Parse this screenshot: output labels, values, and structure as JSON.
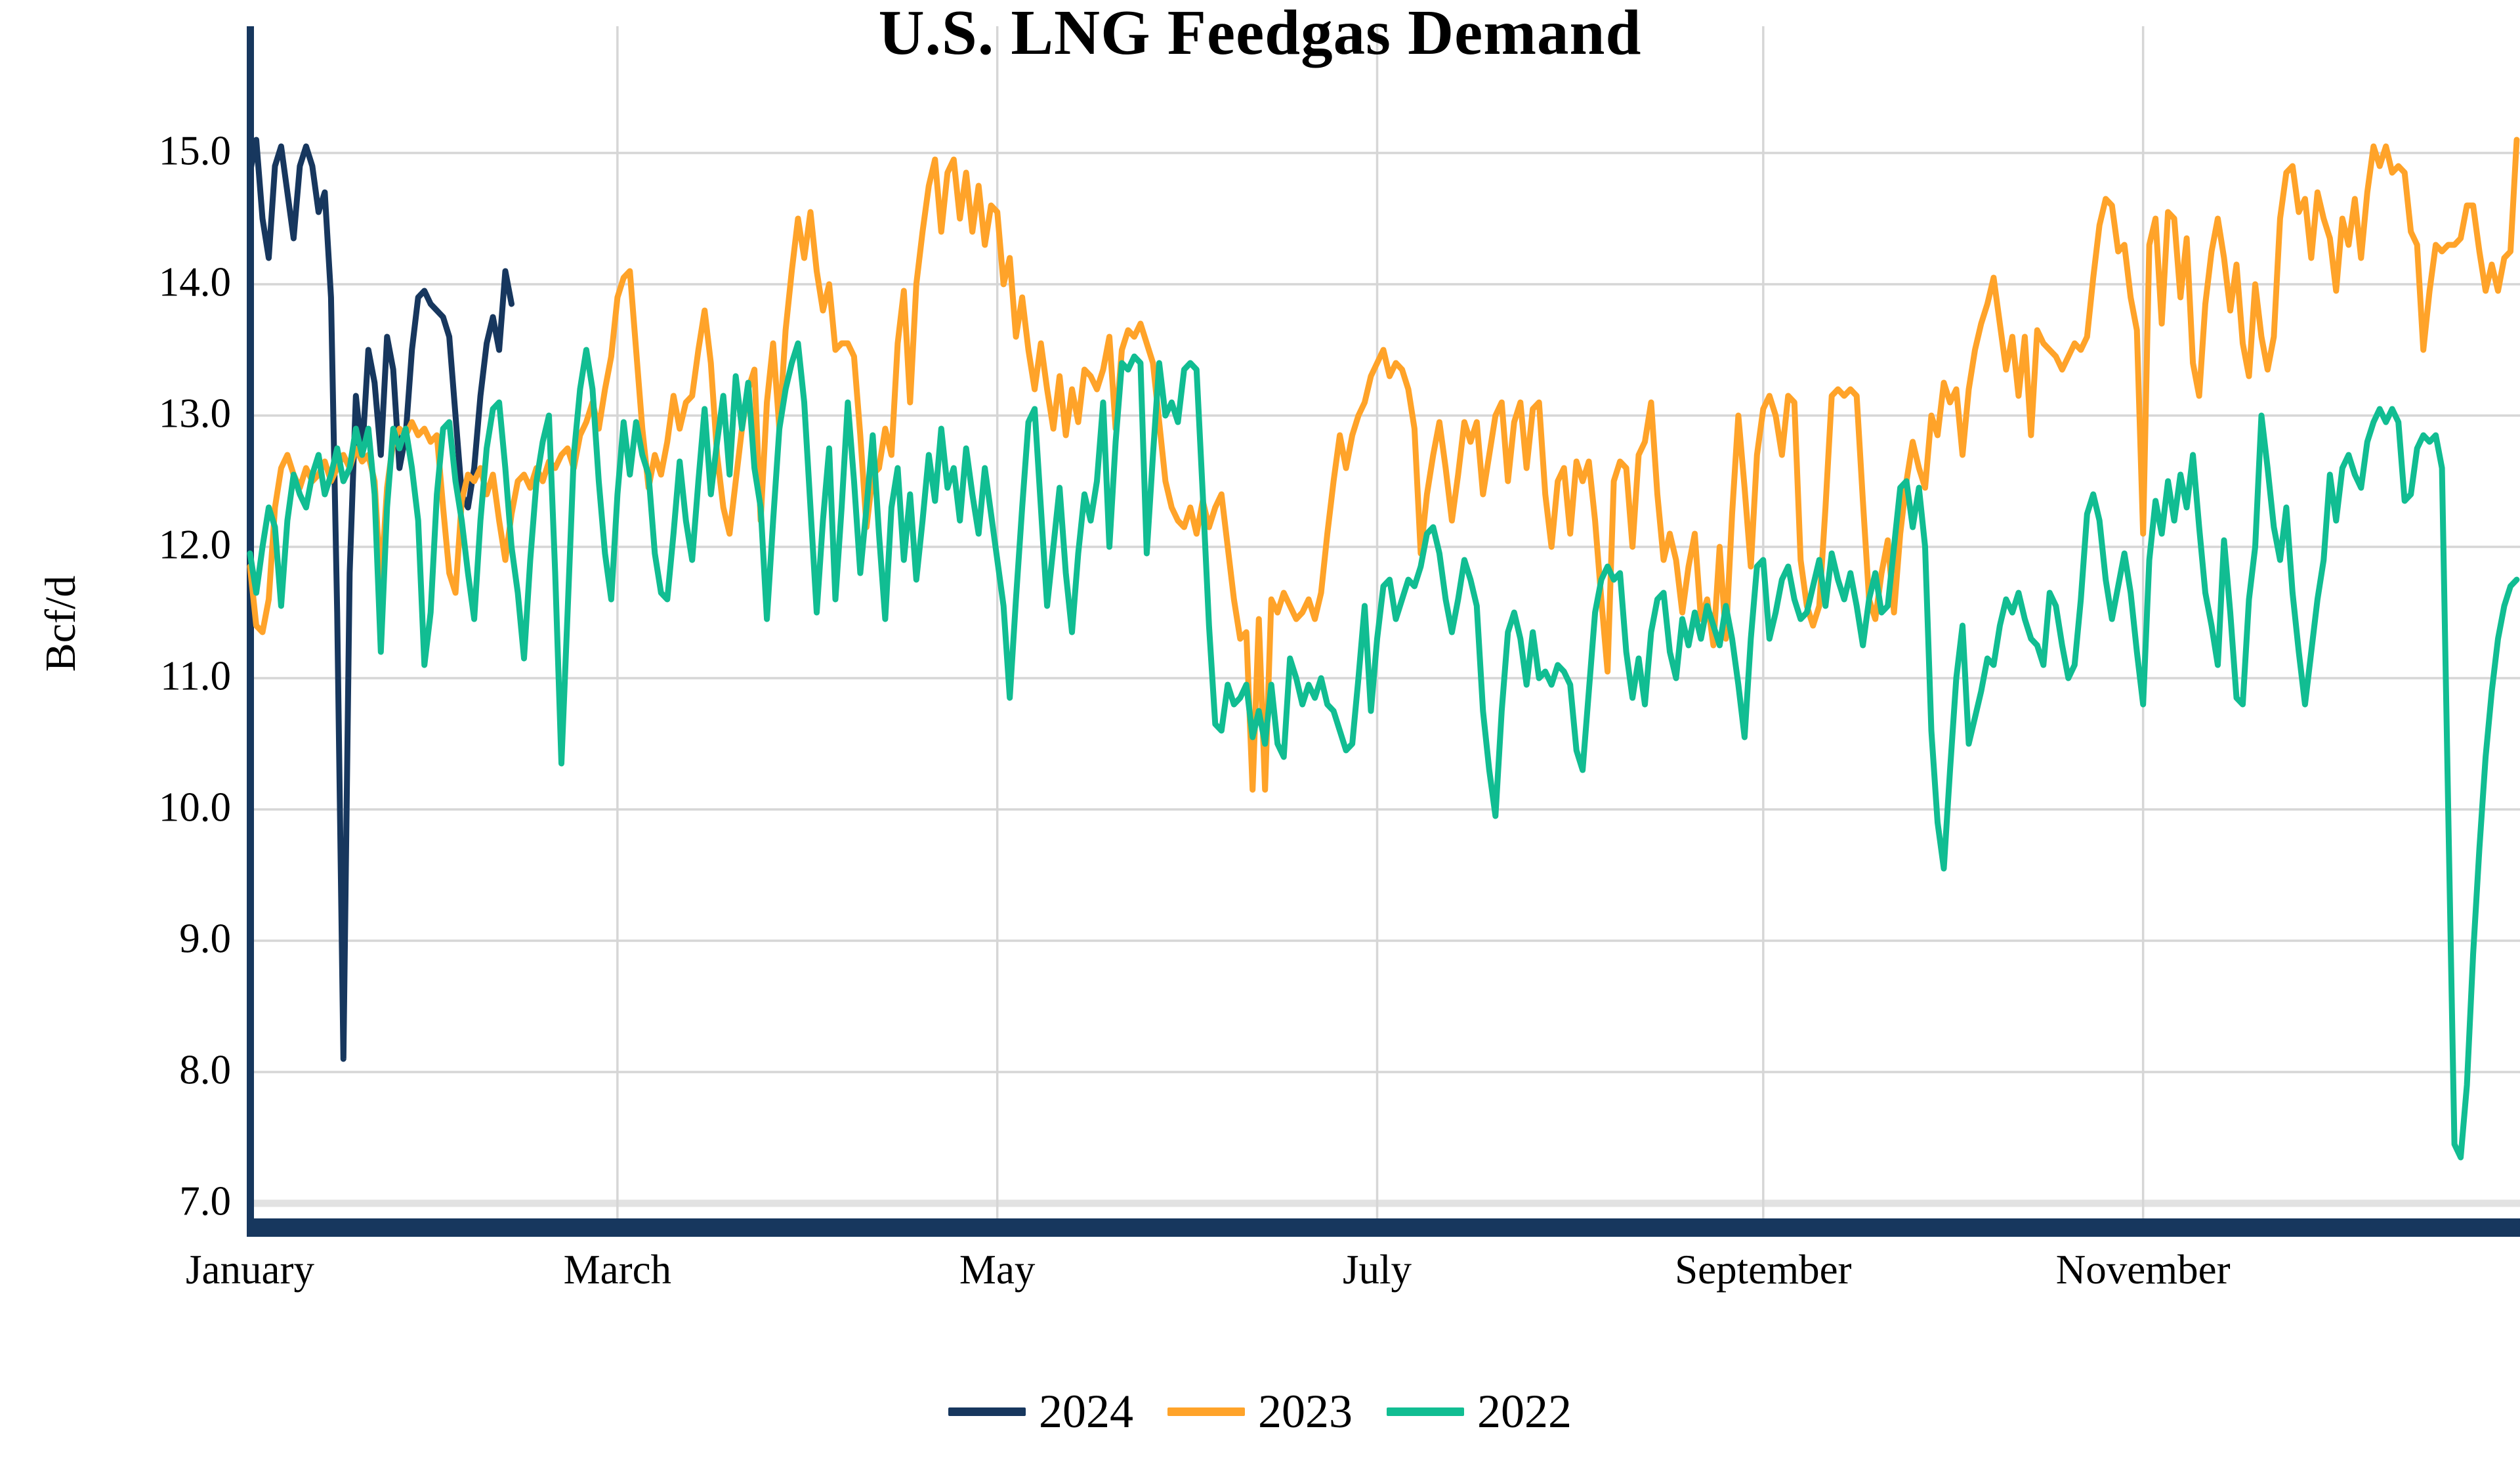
{
  "title": "U.S. LNG Feedgas Demand",
  "chart_data": {
    "type": "line",
    "title": "U.S. LNG Feedgas Demand",
    "xlabel": "",
    "ylabel": "Bcf/d",
    "ylim": [
      7.0,
      15.5
    ],
    "grid": true,
    "legend_position": "bottom",
    "x_unit": "day_of_year",
    "x_range": [
      1,
      365
    ],
    "yticks": [
      {
        "value": 7,
        "label": "7.0"
      },
      {
        "value": 8,
        "label": "8.0"
      },
      {
        "value": 9,
        "label": "9.0"
      },
      {
        "value": 10,
        "label": "10.0"
      },
      {
        "value": 11,
        "label": "11.0"
      },
      {
        "value": 12,
        "label": "12.0"
      },
      {
        "value": 13,
        "label": "13.0"
      },
      {
        "value": 14,
        "label": "14.0"
      },
      {
        "value": 15,
        "label": "15.0"
      }
    ],
    "xticks": [
      {
        "day": 1,
        "label": "January",
        "gridline": false
      },
      {
        "day": 60,
        "label": "March",
        "gridline": true
      },
      {
        "day": 121,
        "label": "May",
        "gridline": true
      },
      {
        "day": 182,
        "label": "July",
        "gridline": true
      },
      {
        "day": 244,
        "label": "September",
        "gridline": true
      },
      {
        "day": 305,
        "label": "November",
        "gridline": true
      }
    ],
    "colors": {
      "axis_spine": "#17375e",
      "gridline": "#d6d6d6",
      "baseline_gridline": "#e2e2e2",
      "background": "#ffffff"
    },
    "series": [
      {
        "name": "2024",
        "color": "#17375e",
        "start_day": 1,
        "values": [
          14.85,
          15.1,
          14.5,
          14.2,
          14.9,
          15.05,
          14.7,
          14.35,
          14.9,
          15.05,
          14.9,
          14.55,
          14.7,
          13.9,
          11.5,
          8.1,
          11.8,
          13.15,
          12.7,
          13.5,
          13.25,
          12.7,
          13.6,
          13.35,
          12.6,
          12.85,
          13.5,
          13.9,
          13.95,
          13.85,
          13.8,
          13.75,
          13.6,
          13.0,
          12.4,
          12.3,
          12.6,
          13.15,
          13.55,
          13.75,
          13.5,
          14.1,
          13.85
        ]
      },
      {
        "name": "2023",
        "color": "#ffa329",
        "start_day": 1,
        "values": [
          11.85,
          11.4,
          11.35,
          11.6,
          12.3,
          12.6,
          12.7,
          12.55,
          12.45,
          12.6,
          12.5,
          12.55,
          12.65,
          12.5,
          12.6,
          12.7,
          12.6,
          12.75,
          12.65,
          12.7,
          12.5,
          11.7,
          12.45,
          12.8,
          12.9,
          12.85,
          12.95,
          12.85,
          12.9,
          12.8,
          12.85,
          12.3,
          11.8,
          11.65,
          12.35,
          12.55,
          12.5,
          12.6,
          12.4,
          12.55,
          12.2,
          11.9,
          12.25,
          12.5,
          12.55,
          12.45,
          12.6,
          12.5,
          12.65,
          12.6,
          12.7,
          12.75,
          12.6,
          12.85,
          12.95,
          13.1,
          12.9,
          13.2,
          13.45,
          13.9,
          14.05,
          14.1,
          13.5,
          12.9,
          12.45,
          12.7,
          12.55,
          12.8,
          13.15,
          12.9,
          13.1,
          13.15,
          13.5,
          13.8,
          13.4,
          12.7,
          12.3,
          12.1,
          12.5,
          12.9,
          13.2,
          13.35,
          12.2,
          13.1,
          13.55,
          12.9,
          13.65,
          14.1,
          14.5,
          14.2,
          14.55,
          14.1,
          13.8,
          14.0,
          13.5,
          13.55,
          13.55,
          13.45,
          12.85,
          12.15,
          12.55,
          12.6,
          12.9,
          12.7,
          13.55,
          13.95,
          13.1,
          14.0,
          14.4,
          14.75,
          14.95,
          14.4,
          14.85,
          14.95,
          14.5,
          14.85,
          14.4,
          14.75,
          14.3,
          14.6,
          14.55,
          14.0,
          14.2,
          13.6,
          13.9,
          13.5,
          13.2,
          13.55,
          13.2,
          12.9,
          13.3,
          12.85,
          13.2,
          12.95,
          13.35,
          13.3,
          13.2,
          13.35,
          13.6,
          12.9,
          13.5,
          13.65,
          13.6,
          13.7,
          13.55,
          13.4,
          12.95,
          12.5,
          12.3,
          12.2,
          12.15,
          12.3,
          12.1,
          12.35,
          12.15,
          12.3,
          12.4,
          12.0,
          11.6,
          11.3,
          11.35,
          10.15,
          11.45,
          10.15,
          11.6,
          11.5,
          11.65,
          11.55,
          11.45,
          11.5,
          11.6,
          11.45,
          11.65,
          12.1,
          12.5,
          12.85,
          12.6,
          12.85,
          13.0,
          13.1,
          13.3,
          13.4,
          13.5,
          13.3,
          13.4,
          13.35,
          13.2,
          12.9,
          11.95,
          12.4,
          12.7,
          12.95,
          12.6,
          12.2,
          12.55,
          12.95,
          12.8,
          12.95,
          12.4,
          12.7,
          13.0,
          13.1,
          12.5,
          12.95,
          13.1,
          12.6,
          13.05,
          13.1,
          12.4,
          12.0,
          12.5,
          12.6,
          12.1,
          12.65,
          12.5,
          12.65,
          12.2,
          11.6,
          11.05,
          12.5,
          12.65,
          12.6,
          12.0,
          12.7,
          12.8,
          13.1,
          12.4,
          11.9,
          12.1,
          11.9,
          11.5,
          11.85,
          12.1,
          11.45,
          11.6,
          11.25,
          12.0,
          11.3,
          12.25,
          13.0,
          12.45,
          11.85,
          12.7,
          13.05,
          13.15,
          13.0,
          12.7,
          13.15,
          13.1,
          11.9,
          11.55,
          11.4,
          11.55,
          12.3,
          13.15,
          13.2,
          13.15,
          13.2,
          13.15,
          12.35,
          11.6,
          11.45,
          11.8,
          12.05,
          11.5,
          12.1,
          12.5,
          12.8,
          12.6,
          12.45,
          13.0,
          12.85,
          13.25,
          13.1,
          13.2,
          12.7,
          13.2,
          13.5,
          13.7,
          13.85,
          14.05,
          13.7,
          13.35,
          13.6,
          13.15,
          13.6,
          12.85,
          13.65,
          13.55,
          13.5,
          13.45,
          13.35,
          13.45,
          13.55,
          13.5,
          13.6,
          14.05,
          14.45,
          14.65,
          14.6,
          14.25,
          14.3,
          13.9,
          13.65,
          12.1,
          14.3,
          14.5,
          13.7,
          14.55,
          14.5,
          13.9,
          14.35,
          13.4,
          13.15,
          13.85,
          14.25,
          14.5,
          14.2,
          13.8,
          14.15,
          13.55,
          13.3,
          14.0,
          13.6,
          13.35,
          13.6,
          14.5,
          14.85,
          14.9,
          14.55,
          14.65,
          14.2,
          14.7,
          14.5,
          14.35,
          13.95,
          14.5,
          14.3,
          14.65,
          14.2,
          14.7,
          15.05,
          14.9,
          15.05,
          14.85,
          14.9,
          14.85,
          14.4,
          14.3,
          13.5,
          13.95,
          14.3,
          14.25,
          14.3,
          14.3,
          14.35,
          14.6,
          14.6,
          14.25,
          13.95,
          14.15,
          13.95,
          14.2,
          14.25,
          15.1
        ]
      },
      {
        "name": "2022",
        "color": "#11bd92",
        "start_day": 1,
        "values": [
          11.95,
          11.65,
          12.0,
          12.3,
          12.15,
          11.55,
          12.2,
          12.55,
          12.4,
          12.3,
          12.55,
          12.7,
          12.4,
          12.55,
          12.75,
          12.5,
          12.6,
          12.9,
          12.7,
          12.9,
          12.4,
          11.2,
          12.3,
          12.9,
          12.75,
          12.9,
          12.6,
          12.2,
          11.1,
          11.5,
          12.4,
          12.9,
          12.95,
          12.5,
          12.2,
          11.8,
          11.45,
          12.2,
          12.75,
          13.05,
          13.1,
          12.6,
          12.0,
          11.65,
          11.15,
          11.9,
          12.5,
          12.8,
          13.0,
          11.8,
          10.35,
          11.5,
          12.7,
          13.2,
          13.5,
          13.2,
          12.5,
          11.95,
          11.6,
          12.4,
          12.95,
          12.55,
          12.95,
          12.7,
          12.55,
          11.95,
          11.65,
          11.6,
          12.1,
          12.65,
          12.2,
          11.9,
          12.5,
          13.05,
          12.4,
          12.8,
          13.15,
          12.55,
          13.3,
          12.9,
          13.25,
          12.6,
          12.3,
          11.45,
          12.2,
          12.9,
          13.2,
          13.4,
          13.55,
          13.1,
          12.3,
          11.5,
          12.2,
          12.75,
          11.6,
          12.3,
          13.1,
          12.5,
          11.8,
          12.3,
          12.85,
          12.1,
          11.45,
          12.3,
          12.6,
          11.9,
          12.4,
          11.75,
          12.2,
          12.7,
          12.35,
          12.9,
          12.45,
          12.6,
          12.2,
          12.75,
          12.4,
          12.1,
          12.6,
          12.25,
          11.9,
          11.55,
          10.85,
          11.6,
          12.3,
          12.95,
          13.05,
          12.3,
          11.55,
          12.0,
          12.45,
          11.8,
          11.35,
          11.95,
          12.4,
          12.2,
          12.5,
          13.1,
          12.0,
          12.8,
          13.4,
          13.35,
          13.45,
          13.4,
          11.95,
          12.7,
          13.4,
          13.0,
          13.1,
          12.95,
          13.35,
          13.4,
          13.35,
          12.4,
          11.4,
          10.65,
          10.6,
          10.95,
          10.8,
          10.85,
          10.95,
          10.55,
          10.75,
          10.5,
          10.95,
          10.5,
          10.4,
          11.15,
          11.0,
          10.8,
          10.95,
          10.85,
          11.0,
          10.8,
          10.75,
          10.6,
          10.45,
          10.5,
          11.0,
          11.55,
          10.75,
          11.3,
          11.7,
          11.75,
          11.45,
          11.6,
          11.75,
          11.7,
          11.85,
          12.1,
          12.15,
          11.95,
          11.6,
          11.35,
          11.6,
          11.9,
          11.75,
          11.55,
          10.75,
          10.3,
          9.95,
          10.75,
          11.35,
          11.5,
          11.3,
          10.95,
          11.35,
          11.0,
          11.05,
          10.95,
          11.1,
          11.05,
          10.95,
          10.45,
          10.3,
          10.9,
          11.5,
          11.75,
          11.85,
          11.75,
          11.8,
          11.2,
          10.85,
          11.15,
          10.8,
          11.35,
          11.6,
          11.65,
          11.2,
          11.0,
          11.45,
          11.25,
          11.5,
          11.3,
          11.55,
          11.4,
          11.25,
          11.55,
          11.3,
          10.95,
          10.55,
          11.3,
          11.85,
          11.9,
          11.3,
          11.5,
          11.75,
          11.85,
          11.6,
          11.45,
          11.5,
          11.7,
          11.9,
          11.55,
          11.95,
          11.75,
          11.6,
          11.8,
          11.55,
          11.25,
          11.6,
          11.8,
          11.5,
          11.55,
          12.0,
          12.45,
          12.5,
          12.15,
          12.45,
          12.0,
          10.6,
          9.9,
          9.55,
          10.3,
          11.0,
          11.4,
          10.5,
          10.7,
          10.9,
          11.15,
          11.1,
          11.4,
          11.6,
          11.5,
          11.65,
          11.45,
          11.3,
          11.25,
          11.1,
          11.65,
          11.55,
          11.25,
          11.0,
          11.1,
          11.6,
          12.25,
          12.4,
          12.2,
          11.75,
          11.45,
          11.7,
          11.95,
          11.65,
          11.2,
          10.8,
          11.9,
          12.35,
          12.1,
          12.5,
          12.2,
          12.55,
          12.3,
          12.7,
          12.15,
          11.65,
          11.4,
          11.1,
          12.05,
          11.5,
          10.85,
          10.8,
          11.6,
          12.0,
          13.0,
          12.6,
          12.15,
          11.9,
          12.3,
          11.65,
          11.2,
          10.8,
          11.2,
          11.6,
          11.9,
          12.55,
          12.2,
          12.6,
          12.7,
          12.55,
          12.45,
          12.8,
          12.95,
          13.05,
          12.95,
          13.05,
          12.95,
          12.35,
          12.4,
          12.75,
          12.85,
          12.8,
          12.85,
          12.6,
          10.0,
          7.45,
          7.35,
          7.9,
          8.9,
          9.7,
          10.4,
          10.9,
          11.3,
          11.55,
          11.7,
          11.75
        ]
      }
    ]
  },
  "legend": {
    "items": [
      {
        "label": "2024"
      },
      {
        "label": "2023"
      },
      {
        "label": "2022"
      }
    ]
  }
}
